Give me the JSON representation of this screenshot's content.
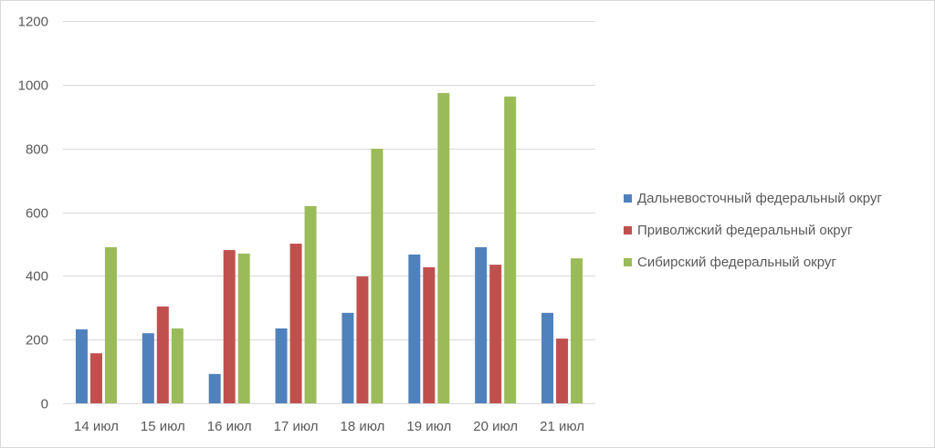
{
  "chart_data": {
    "type": "bar",
    "title": "",
    "xlabel": "",
    "ylabel": "",
    "categories": [
      "14 июл",
      "15 июл",
      "16 июл",
      "17 июл",
      "18 июл",
      "19 июл",
      "20 июл",
      "21 июл"
    ],
    "series": [
      {
        "name": "Дальневосточный федеральный округ",
        "color": "#4f81bd",
        "values": [
          232,
          220,
          92,
          235,
          284,
          467,
          490,
          284
        ]
      },
      {
        "name": "Приволжский федеральный округ",
        "color": "#c0504d",
        "values": [
          157,
          304,
          481,
          501,
          398,
          427,
          435,
          203
        ]
      },
      {
        "name": "Сибирский федеральный округ",
        "color": "#9bbb59",
        "values": [
          490,
          235,
          470,
          619,
          799,
          974,
          963,
          455
        ]
      }
    ],
    "ylim": [
      0,
      1200
    ],
    "yticks": [
      0,
      200,
      400,
      600,
      800,
      1000,
      1200
    ],
    "grid": true,
    "legend_position": "right"
  },
  "legend": {
    "items": [
      {
        "label": "Дальневосточный федеральный округ",
        "color": "#4f81bd"
      },
      {
        "label": "Приволжский федеральный округ",
        "color": "#c0504d"
      },
      {
        "label": "Сибирский федеральный округ",
        "color": "#9bbb59"
      }
    ]
  }
}
